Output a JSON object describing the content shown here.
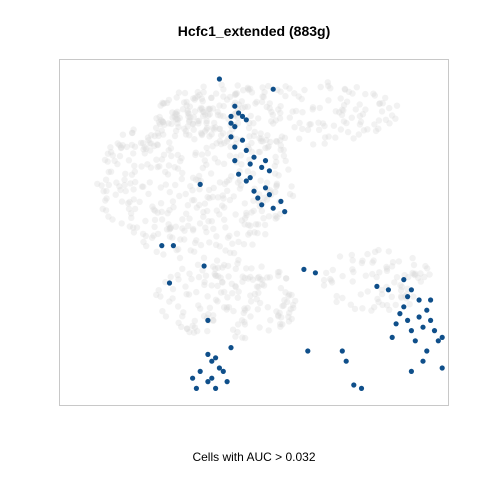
{
  "chart_data": {
    "type": "scatter",
    "title": "Hcfc1_extended (883g)",
    "xlabel": "Cells with AUC > 0.032",
    "ylabel": "",
    "axes_shown": false,
    "grid": false,
    "legend": "none",
    "colors": {
      "background_cells": "#d9d9d9",
      "selected_cells": "#0f4f8a",
      "frame": "#c8c8c8"
    },
    "background_regions": [
      {
        "cx": 0.35,
        "cy": 0.64,
        "rx": 0.26,
        "ry": 0.22,
        "n": 380
      },
      {
        "cx": 0.43,
        "cy": 0.3,
        "rx": 0.19,
        "ry": 0.12,
        "n": 160
      },
      {
        "cx": 0.56,
        "cy": 0.85,
        "rx": 0.32,
        "ry": 0.1,
        "n": 200
      },
      {
        "cx": 0.82,
        "cy": 0.36,
        "rx": 0.14,
        "ry": 0.1,
        "n": 80
      },
      {
        "cx": 0.38,
        "cy": 0.87,
        "rx": 0.07,
        "ry": 0.05,
        "n": 25
      }
    ],
    "selected_cells": [
      [
        0.41,
        0.95
      ],
      [
        0.44,
        0.84
      ],
      [
        0.44,
        0.82
      ],
      [
        0.45,
        0.87
      ],
      [
        0.46,
        0.85
      ],
      [
        0.45,
        0.81
      ],
      [
        0.47,
        0.84
      ],
      [
        0.48,
        0.83
      ],
      [
        0.44,
        0.78
      ],
      [
        0.45,
        0.75
      ],
      [
        0.47,
        0.77
      ],
      [
        0.48,
        0.74
      ],
      [
        0.5,
        0.72
      ],
      [
        0.49,
        0.7
      ],
      [
        0.52,
        0.69
      ],
      [
        0.53,
        0.71
      ],
      [
        0.54,
        0.68
      ],
      [
        0.46,
        0.67
      ],
      [
        0.48,
        0.65
      ],
      [
        0.49,
        0.66
      ],
      [
        0.5,
        0.62
      ],
      [
        0.51,
        0.6
      ],
      [
        0.53,
        0.63
      ],
      [
        0.54,
        0.61
      ],
      [
        0.52,
        0.58
      ],
      [
        0.55,
        0.57
      ],
      [
        0.57,
        0.59
      ],
      [
        0.36,
        0.64
      ],
      [
        0.55,
        0.92
      ],
      [
        0.58,
        0.56
      ],
      [
        0.45,
        0.71
      ],
      [
        0.26,
        0.46
      ],
      [
        0.29,
        0.46
      ],
      [
        0.28,
        0.35
      ],
      [
        0.37,
        0.4
      ],
      [
        0.38,
        0.24
      ],
      [
        0.39,
        0.12
      ],
      [
        0.38,
        0.14
      ],
      [
        0.4,
        0.13
      ],
      [
        0.41,
        0.1
      ],
      [
        0.39,
        0.07
      ],
      [
        0.34,
        0.07
      ],
      [
        0.36,
        0.09
      ],
      [
        0.38,
        0.06
      ],
      [
        0.35,
        0.04
      ],
      [
        0.4,
        0.04
      ],
      [
        0.43,
        0.06
      ],
      [
        0.42,
        0.09
      ],
      [
        0.44,
        0.16
      ],
      [
        0.63,
        0.39
      ],
      [
        0.66,
        0.38
      ],
      [
        0.64,
        0.15
      ],
      [
        0.73,
        0.15
      ],
      [
        0.74,
        0.12
      ],
      [
        0.76,
        0.05
      ],
      [
        0.78,
        0.04
      ],
      [
        0.89,
        0.28
      ],
      [
        0.9,
        0.31
      ],
      [
        0.91,
        0.33
      ],
      [
        0.93,
        0.3
      ],
      [
        0.95,
        0.27
      ],
      [
        0.96,
        0.24
      ],
      [
        0.94,
        0.22
      ],
      [
        0.93,
        0.25
      ],
      [
        0.97,
        0.21
      ],
      [
        0.98,
        0.18
      ],
      [
        0.99,
        0.19
      ],
      [
        0.92,
        0.18
      ],
      [
        0.91,
        0.21
      ],
      [
        0.9,
        0.24
      ],
      [
        0.88,
        0.26
      ],
      [
        0.87,
        0.23
      ],
      [
        0.95,
        0.15
      ],
      [
        0.96,
        0.3
      ],
      [
        0.86,
        0.19
      ],
      [
        0.91,
        0.09
      ],
      [
        0.94,
        0.12
      ],
      [
        0.99,
        0.1
      ],
      [
        0.85,
        0.33
      ],
      [
        0.89,
        0.36
      ],
      [
        0.82,
        0.34
      ]
    ]
  }
}
